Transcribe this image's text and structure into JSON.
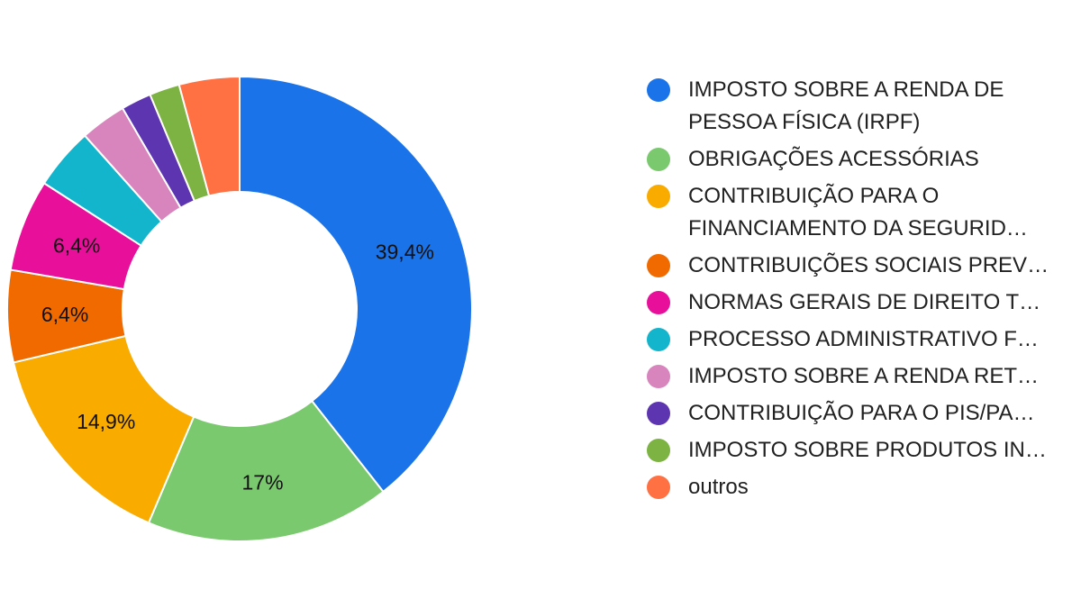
{
  "chart_data": {
    "type": "pie",
    "variant": "donut",
    "legend_position": "right",
    "slices": [
      {
        "label": "IMPOSTO SOBRE A RENDA DE PESSOA FÍSICA (IRPF)",
        "value": 39.4,
        "display": "39,4%",
        "color": "#1a73e8"
      },
      {
        "label": "OBRIGAÇÕES ACESSÓRIAS",
        "value": 17.0,
        "display": "17%",
        "color": "#7bc96f"
      },
      {
        "label": "CONTRIBUIÇÃO PARA O FINANCIAMENTO DA SEGURID…",
        "value": 14.9,
        "display": "14,9%",
        "color": "#f9ab00"
      },
      {
        "label": "CONTRIBUIÇÕES SOCIAIS PREV…",
        "value": 6.4,
        "display": "6,4%",
        "color": "#f06a00"
      },
      {
        "label": "NORMAS GERAIS DE DIREITO T…",
        "value": 6.4,
        "display": "6,4%",
        "color": "#e8109a"
      },
      {
        "label": "PROCESSO ADMINISTRATIVO F…",
        "value": 4.3,
        "display": "",
        "color": "#12b5cb"
      },
      {
        "label": "IMPOSTO SOBRE A RENDA RET…",
        "value": 3.2,
        "display": "",
        "color": "#d884bd"
      },
      {
        "label": "CONTRIBUIÇÃO PARA O PIS/PA…",
        "value": 2.1,
        "display": "",
        "color": "#5e35b1"
      },
      {
        "label": "IMPOSTO SOBRE PRODUTOS IN…",
        "value": 2.1,
        "display": "",
        "color": "#7cb342"
      },
      {
        "label": "outros",
        "value": 4.2,
        "display": "",
        "color": "#ff7043"
      }
    ]
  }
}
